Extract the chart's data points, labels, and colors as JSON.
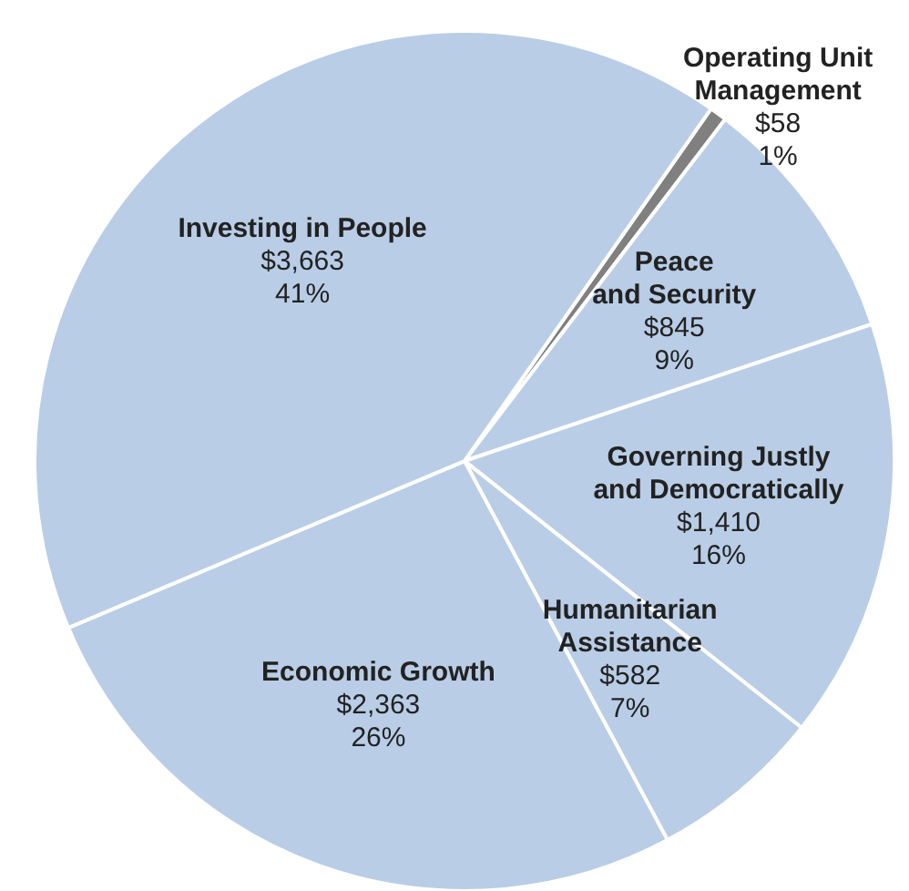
{
  "chart_data": {
    "type": "pie",
    "categories": [
      "Operating Unit\nManagement",
      "Peace\nand Security",
      "Governing Justly\nand Democratically",
      "Humanitarian\nAssistance",
      "Economic Growth",
      "Investing in People"
    ],
    "values": [
      58,
      845,
      1410,
      582,
      2363,
      3663
    ],
    "value_labels": [
      "$58\n1%",
      "$845\n9%",
      "$1,410\n16%",
      "$582\n7%",
      "$2,363\n26%",
      "$3,663\n41%"
    ],
    "colors": [
      "#808080",
      "#b9cde6",
      "#b9cde6",
      "#b9cde6",
      "#b9cde6",
      "#b9cde6"
    ],
    "legend": false
  }
}
